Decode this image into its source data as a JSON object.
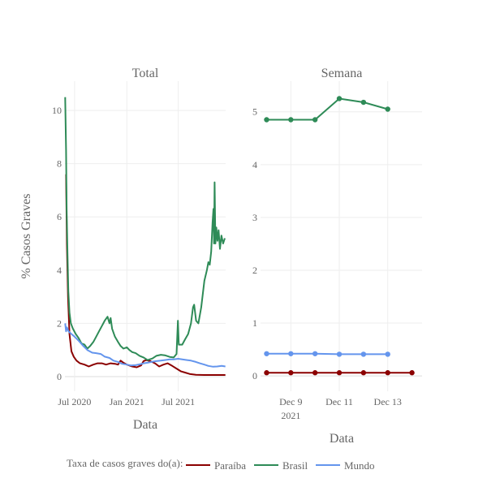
{
  "chart_data": [
    {
      "type": "line",
      "title": "Total",
      "xlabel": "Data",
      "ylabel": "% Casos Graves",
      "x_ticks": [
        "Jul 2020",
        "Jan 2021",
        "Jul 2021"
      ],
      "y_ticks": [
        "0",
        "2",
        "4",
        "6",
        "8",
        "10"
      ],
      "ylim": [
        -0.55,
        11.1
      ],
      "xlim": [
        "2020-05-28",
        "2021-12-15"
      ],
      "grid": true,
      "series": [
        {
          "name": "Paraíba",
          "color": "#8b0000",
          "points": [
            [
              "2020-06-01",
              7.6
            ],
            [
              "2020-06-04",
              5.0
            ],
            [
              "2020-06-08",
              3.0
            ],
            [
              "2020-06-13",
              1.6
            ],
            [
              "2020-06-20",
              0.95
            ],
            [
              "2020-06-28",
              0.75
            ],
            [
              "2020-07-08",
              0.6
            ],
            [
              "2020-07-20",
              0.5
            ],
            [
              "2020-08-05",
              0.45
            ],
            [
              "2020-08-20",
              0.38
            ],
            [
              "2020-09-05",
              0.45
            ],
            [
              "2020-09-20",
              0.5
            ],
            [
              "2020-10-05",
              0.5
            ],
            [
              "2020-10-20",
              0.45
            ],
            [
              "2020-11-05",
              0.5
            ],
            [
              "2020-11-20",
              0.48
            ],
            [
              "2020-12-01",
              0.45
            ],
            [
              "2020-12-10",
              0.6
            ],
            [
              "2020-12-20",
              0.52
            ],
            [
              "2021-01-01",
              0.45
            ],
            [
              "2021-01-20",
              0.38
            ],
            [
              "2021-02-05",
              0.35
            ],
            [
              "2021-02-20",
              0.42
            ],
            [
              "2021-03-01",
              0.58
            ],
            [
              "2021-03-10",
              0.62
            ],
            [
              "2021-03-25",
              0.58
            ],
            [
              "2021-04-10",
              0.5
            ],
            [
              "2021-04-25",
              0.38
            ],
            [
              "2021-05-10",
              0.45
            ],
            [
              "2021-05-25",
              0.5
            ],
            [
              "2021-06-10",
              0.4
            ],
            [
              "2021-06-25",
              0.3
            ],
            [
              "2021-07-10",
              0.2
            ],
            [
              "2021-07-25",
              0.15
            ],
            [
              "2021-08-10",
              0.1
            ],
            [
              "2021-09-01",
              0.07
            ],
            [
              "2021-10-01",
              0.06
            ],
            [
              "2021-11-01",
              0.06
            ],
            [
              "2021-12-01",
              0.06
            ],
            [
              "2021-12-14",
              0.06
            ]
          ]
        },
        {
          "name": "Brasil",
          "color": "#2e8b57",
          "points": [
            [
              "2020-05-29",
              10.5
            ],
            [
              "2020-06-01",
              8.5
            ],
            [
              "2020-06-03",
              6.3
            ],
            [
              "2020-06-06",
              4.7
            ],
            [
              "2020-06-09",
              3.2
            ],
            [
              "2020-06-13",
              2.4
            ],
            [
              "2020-06-18",
              2.0
            ],
            [
              "2020-06-25",
              1.8
            ],
            [
              "2020-07-05",
              1.6
            ],
            [
              "2020-07-15",
              1.45
            ],
            [
              "2020-07-25",
              1.25
            ],
            [
              "2020-08-05",
              1.2
            ],
            [
              "2020-08-15",
              1.05
            ],
            [
              "2020-08-25",
              1.15
            ],
            [
              "2020-09-05",
              1.3
            ],
            [
              "2020-09-15",
              1.5
            ],
            [
              "2020-09-25",
              1.7
            ],
            [
              "2020-10-05",
              1.9
            ],
            [
              "2020-10-15",
              2.1
            ],
            [
              "2020-10-25",
              2.25
            ],
            [
              "2020-11-01",
              2.0
            ],
            [
              "2020-11-05",
              2.2
            ],
            [
              "2020-11-10",
              1.8
            ],
            [
              "2020-11-20",
              1.5
            ],
            [
              "2020-12-01",
              1.3
            ],
            [
              "2020-12-10",
              1.15
            ],
            [
              "2020-12-20",
              1.05
            ],
            [
              "2021-01-01",
              1.1
            ],
            [
              "2021-01-10",
              1.0
            ],
            [
              "2021-01-20",
              0.92
            ],
            [
              "2021-02-01",
              0.88
            ],
            [
              "2021-02-15",
              0.78
            ],
            [
              "2021-03-01",
              0.72
            ],
            [
              "2021-03-15",
              0.62
            ],
            [
              "2021-04-01",
              0.68
            ],
            [
              "2021-04-15",
              0.78
            ],
            [
              "2021-05-01",
              0.82
            ],
            [
              "2021-05-15",
              0.8
            ],
            [
              "2021-06-01",
              0.74
            ],
            [
              "2021-06-15",
              0.72
            ],
            [
              "2021-06-25",
              0.85
            ],
            [
              "2021-06-30",
              2.1
            ],
            [
              "2021-07-03",
              1.2
            ],
            [
              "2021-07-15",
              1.2
            ],
            [
              "2021-07-25",
              1.4
            ],
            [
              "2021-08-05",
              1.6
            ],
            [
              "2021-08-15",
              2.0
            ],
            [
              "2021-08-22",
              2.6
            ],
            [
              "2021-08-26",
              2.7
            ],
            [
              "2021-09-02",
              2.1
            ],
            [
              "2021-09-10",
              2.0
            ],
            [
              "2021-09-20",
              2.6
            ],
            [
              "2021-10-01",
              3.6
            ],
            [
              "2021-10-10",
              4.0
            ],
            [
              "2021-10-15",
              4.3
            ],
            [
              "2021-10-20",
              4.2
            ],
            [
              "2021-10-25",
              4.7
            ],
            [
              "2021-10-30",
              5.8
            ],
            [
              "2021-11-02",
              6.3
            ],
            [
              "2021-11-04",
              5.0
            ],
            [
              "2021-11-06",
              7.3
            ],
            [
              "2021-11-09",
              5.0
            ],
            [
              "2021-11-12",
              5.6
            ],
            [
              "2021-11-16",
              5.1
            ],
            [
              "2021-11-20",
              5.5
            ],
            [
              "2021-11-25",
              4.8
            ],
            [
              "2021-11-30",
              5.3
            ],
            [
              "2021-12-06",
              5.0
            ],
            [
              "2021-12-12",
              5.2
            ]
          ]
        },
        {
          "name": "Mundo",
          "color": "#6495ed",
          "points": [
            [
              "2020-05-29",
              2.0
            ],
            [
              "2020-06-01",
              1.7
            ],
            [
              "2020-06-04",
              1.85
            ],
            [
              "2020-06-10",
              1.7
            ],
            [
              "2020-06-20",
              1.6
            ],
            [
              "2020-07-01",
              1.5
            ],
            [
              "2020-07-15",
              1.35
            ],
            [
              "2020-08-01",
              1.15
            ],
            [
              "2020-08-15",
              1.0
            ],
            [
              "2020-09-01",
              0.9
            ],
            [
              "2020-09-15",
              0.88
            ],
            [
              "2020-10-01",
              0.85
            ],
            [
              "2020-10-15",
              0.75
            ],
            [
              "2020-11-01",
              0.7
            ],
            [
              "2020-11-15",
              0.6
            ],
            [
              "2020-12-01",
              0.55
            ],
            [
              "2020-12-15",
              0.48
            ],
            [
              "2021-01-01",
              0.45
            ],
            [
              "2021-01-15",
              0.42
            ],
            [
              "2021-02-01",
              0.43
            ],
            [
              "2021-02-15",
              0.46
            ],
            [
              "2021-03-01",
              0.5
            ],
            [
              "2021-03-15",
              0.52
            ],
            [
              "2021-04-01",
              0.56
            ],
            [
              "2021-04-15",
              0.58
            ],
            [
              "2021-05-01",
              0.6
            ],
            [
              "2021-05-15",
              0.62
            ],
            [
              "2021-06-01",
              0.65
            ],
            [
              "2021-06-15",
              0.65
            ],
            [
              "2021-07-01",
              0.67
            ],
            [
              "2021-07-15",
              0.65
            ],
            [
              "2021-08-01",
              0.62
            ],
            [
              "2021-08-15",
              0.6
            ],
            [
              "2021-09-01",
              0.55
            ],
            [
              "2021-09-15",
              0.5
            ],
            [
              "2021-10-01",
              0.45
            ],
            [
              "2021-10-15",
              0.4
            ],
            [
              "2021-11-01",
              0.37
            ],
            [
              "2021-11-15",
              0.38
            ],
            [
              "2021-12-01",
              0.4
            ],
            [
              "2021-12-14",
              0.38
            ]
          ]
        }
      ]
    },
    {
      "type": "line",
      "title": "Semana",
      "xlabel": "Data",
      "x_ticks": [
        {
          "label": "Dec 9",
          "sublabel": "2021",
          "date": "2021-12-09"
        },
        {
          "label": "Dec 11",
          "sublabel": "",
          "date": "2021-12-11"
        },
        {
          "label": "Dec 13",
          "sublabel": "",
          "date": "2021-12-13"
        }
      ],
      "y_ticks": [
        "0",
        "1",
        "2",
        "3",
        "4",
        "5"
      ],
      "ylim": [
        -0.29,
        5.58
      ],
      "xlim": [
        "2021-12-07T18:00",
        "2021-12-14T10:00"
      ],
      "grid": true,
      "markers": true,
      "series": [
        {
          "name": "Paraíba",
          "color": "#8b0000",
          "points": [
            [
              "2021-12-08",
              0.06
            ],
            [
              "2021-12-09",
              0.06
            ],
            [
              "2021-12-10",
              0.06
            ],
            [
              "2021-12-11",
              0.06
            ],
            [
              "2021-12-12",
              0.06
            ],
            [
              "2021-12-13",
              0.06
            ],
            [
              "2021-12-14",
              0.06
            ]
          ]
        },
        {
          "name": "Brasil",
          "color": "#2e8b57",
          "points": [
            [
              "2021-12-08",
              4.85
            ],
            [
              "2021-12-09",
              4.85
            ],
            [
              "2021-12-10",
              4.85
            ],
            [
              "2021-12-11",
              5.25
            ],
            [
              "2021-12-12",
              5.18
            ],
            [
              "2021-12-13",
              5.05
            ]
          ]
        },
        {
          "name": "Mundo",
          "color": "#6495ed",
          "points": [
            [
              "2021-12-08",
              0.42
            ],
            [
              "2021-12-09",
              0.42
            ],
            [
              "2021-12-10",
              0.42
            ],
            [
              "2021-12-11",
              0.41
            ],
            [
              "2021-12-12",
              0.41
            ],
            [
              "2021-12-13",
              0.41
            ]
          ]
        }
      ]
    }
  ],
  "legend": {
    "title": "Taxa de casos graves do(a):",
    "items": [
      {
        "name": "Paraíba",
        "color": "#8b0000"
      },
      {
        "name": "Brasil",
        "color": "#2e8b57"
      },
      {
        "name": "Mundo",
        "color": "#6495ed"
      }
    ]
  }
}
